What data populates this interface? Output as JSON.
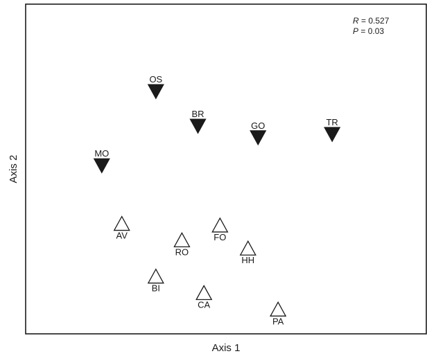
{
  "chart_data": {
    "type": "scatter",
    "xlabel": "Axis 1",
    "ylabel": "Axis 2",
    "xlim": [
      0,
      100
    ],
    "ylim": [
      0,
      100
    ],
    "grid": false,
    "ticks": false,
    "annotation": {
      "r_label": "R",
      "r_value": " = 0.527",
      "p_label": "P",
      "p_value": " = 0.03"
    },
    "series": [
      {
        "marker": "filled-down-triangle",
        "color": "#1a1a1a",
        "points": [
          {
            "label": "OS",
            "x": 32.5,
            "y": 73.5
          },
          {
            "label": "BR",
            "x": 43.0,
            "y": 63.0
          },
          {
            "label": "GO",
            "x": 58.0,
            "y": 59.5
          },
          {
            "label": "TR",
            "x": 76.5,
            "y": 60.5
          },
          {
            "label": "MO",
            "x": 19.0,
            "y": 51.0
          }
        ]
      },
      {
        "marker": "open-up-triangle",
        "color": "#1a1a1a",
        "points": [
          {
            "label": "AV",
            "x": 24.0,
            "y": 33.5
          },
          {
            "label": "FO",
            "x": 48.5,
            "y": 33.0
          },
          {
            "label": "RO",
            "x": 39.0,
            "y": 28.5
          },
          {
            "label": "HH",
            "x": 55.5,
            "y": 26.0
          },
          {
            "label": "BI",
            "x": 32.5,
            "y": 17.5
          },
          {
            "label": "CA",
            "x": 44.5,
            "y": 12.5
          },
          {
            "label": "PA",
            "x": 63.0,
            "y": 7.5
          }
        ]
      }
    ]
  }
}
